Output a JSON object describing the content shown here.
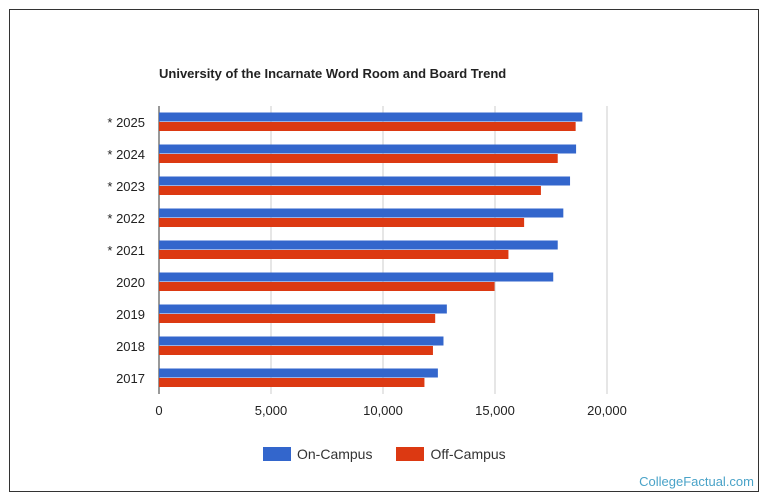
{
  "brand": "CollegeFactual.com",
  "colors": {
    "on_campus": "#3366cc",
    "off_campus": "#dc3912",
    "grid": "#cccccc",
    "text": "#222222"
  },
  "chart_data": {
    "type": "bar",
    "orientation": "horizontal",
    "title": "University of the Incarnate Word Room and Board Trend",
    "categories": [
      "* 2025",
      "* 2024",
      "* 2023",
      "* 2022",
      "* 2021",
      "2020",
      "2019",
      "2018",
      "2017"
    ],
    "series": [
      {
        "name": "On-Campus",
        "color": "#3366cc",
        "values": [
          18900,
          18620,
          18350,
          18050,
          17800,
          17600,
          12850,
          12700,
          12450
        ]
      },
      {
        "name": "Off-Campus",
        "color": "#dc3912",
        "values": [
          18600,
          17800,
          17050,
          16300,
          15600,
          14980,
          12330,
          12230,
          11850
        ]
      }
    ],
    "x_ticks": [
      "0",
      "5,000",
      "10,000",
      "15,000",
      "20,000"
    ],
    "xlim": [
      0,
      20000
    ],
    "grid": true,
    "legend": "bottom"
  }
}
